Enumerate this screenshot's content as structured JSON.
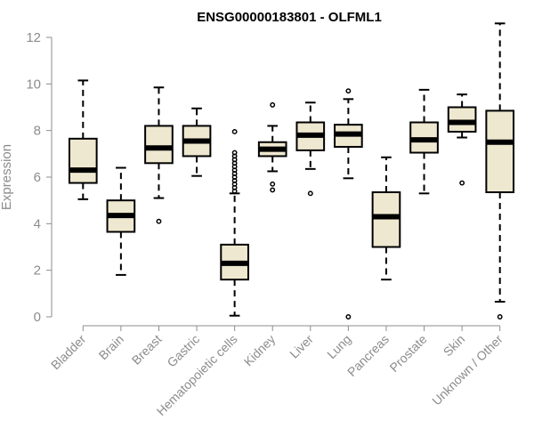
{
  "chart_data": {
    "type": "box",
    "title": "ENSG00000183801 - OLFML1",
    "ylabel": "Expression",
    "xlabel": "",
    "ylim": [
      0,
      12
    ],
    "yticks": [
      0,
      2,
      4,
      6,
      8,
      10,
      12
    ],
    "grid": false,
    "legend": "none",
    "box_fill": "#efe8d0",
    "box_stroke": "#000000",
    "median_color": "#000000",
    "categories": [
      "Bladder",
      "Brain",
      "Breast",
      "Gastric",
      "Hematopoietic cells",
      "Kidney",
      "Liver",
      "Lung",
      "Pancreas",
      "Prostate",
      "Skin",
      "Unknown / Other"
    ],
    "boxes": [
      {
        "category": "Bladder",
        "whisker_low": 5.05,
        "q1": 5.75,
        "median": 6.3,
        "q3": 7.65,
        "whisker_high": 10.15,
        "outliers": []
      },
      {
        "category": "Brain",
        "whisker_low": 1.8,
        "q1": 3.65,
        "median": 4.35,
        "q3": 5.0,
        "whisker_high": 6.4,
        "outliers": []
      },
      {
        "category": "Breast",
        "whisker_low": 5.1,
        "q1": 6.6,
        "median": 7.25,
        "q3": 8.2,
        "whisker_high": 9.85,
        "outliers": [
          4.1
        ]
      },
      {
        "category": "Gastric",
        "whisker_low": 6.05,
        "q1": 6.9,
        "median": 7.55,
        "q3": 8.2,
        "whisker_high": 8.95,
        "outliers": []
      },
      {
        "category": "Hematopoietic cells",
        "whisker_low": 0.05,
        "q1": 1.6,
        "median": 2.3,
        "q3": 3.1,
        "whisker_high": 5.3,
        "outliers": [
          5.4,
          5.55,
          5.7,
          5.85,
          6.0,
          6.15,
          6.3,
          6.45,
          6.6,
          6.75,
          6.9,
          7.05,
          7.95
        ]
      },
      {
        "category": "Kidney",
        "whisker_low": 6.25,
        "q1": 6.9,
        "median": 7.2,
        "q3": 7.5,
        "whisker_high": 8.2,
        "outliers": [
          5.45,
          5.7,
          9.1
        ]
      },
      {
        "category": "Liver",
        "whisker_low": 6.35,
        "q1": 7.15,
        "median": 7.8,
        "q3": 8.35,
        "whisker_high": 9.2,
        "outliers": [
          5.3
        ]
      },
      {
        "category": "Lung",
        "whisker_low": 5.95,
        "q1": 7.3,
        "median": 7.85,
        "q3": 8.25,
        "whisker_high": 9.35,
        "outliers": [
          0.0,
          9.7
        ]
      },
      {
        "category": "Pancreas",
        "whisker_low": 1.6,
        "q1": 3.0,
        "median": 4.3,
        "q3": 5.35,
        "whisker_high": 6.85,
        "outliers": []
      },
      {
        "category": "Prostate",
        "whisker_low": 5.3,
        "q1": 7.05,
        "median": 7.6,
        "q3": 8.35,
        "whisker_high": 9.75,
        "outliers": []
      },
      {
        "category": "Skin",
        "whisker_low": 7.7,
        "q1": 7.95,
        "median": 8.35,
        "q3": 9.0,
        "whisker_high": 9.55,
        "outliers": [
          5.75
        ]
      },
      {
        "category": "Unknown / Other",
        "whisker_low": 0.65,
        "q1": 5.35,
        "median": 7.5,
        "q3": 8.85,
        "whisker_high": 12.6,
        "outliers": [
          0.0
        ]
      }
    ]
  }
}
